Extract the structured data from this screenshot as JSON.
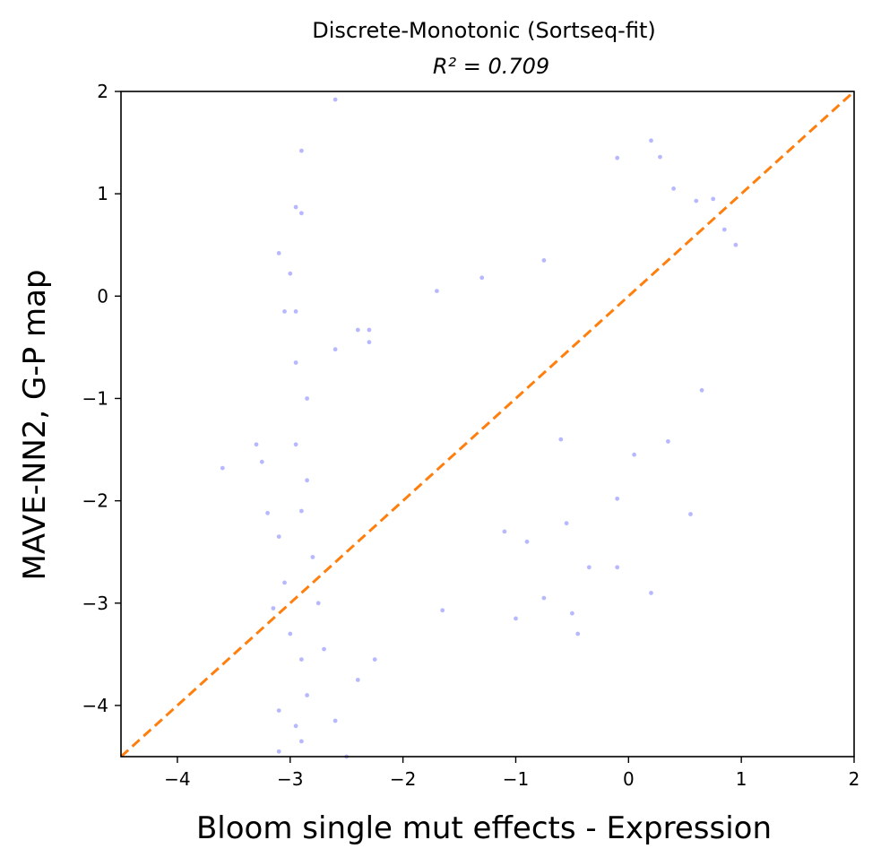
{
  "chart_data": {
    "type": "scatter",
    "title": "Discrete-Monotonic (Sortseq-fit)",
    "subtitle": "R² = 0.709",
    "xlabel": "Bloom single mut effects - Expression",
    "ylabel": "MAVE-NN2, G-P map",
    "xlim": [
      -4.5,
      2
    ],
    "ylim": [
      -4.5,
      2
    ],
    "xticks": [
      -4,
      -3,
      -2,
      -1,
      0,
      1,
      2
    ],
    "yticks": [
      -4,
      -3,
      -2,
      -1,
      0,
      1,
      2
    ],
    "xtick_labels": [
      "−4",
      "−3",
      "−2",
      "−1",
      "0",
      "1",
      "2"
    ],
    "ytick_labels": [
      "−4",
      "−3",
      "−2",
      "−1",
      "0",
      "1",
      "2"
    ],
    "grid": false,
    "point_color": "#0000ff",
    "point_opacity": 0.28,
    "diagonal": {
      "from": [
        -4.5,
        -4.5
      ],
      "to": [
        2,
        2
      ],
      "color": "#ff7f0e",
      "style": "dashed"
    },
    "points": [
      [
        -2.6,
        1.92
      ],
      [
        -2.9,
        1.42
      ],
      [
        -2.95,
        0.87
      ],
      [
        -2.9,
        0.81
      ],
      [
        -3.1,
        0.42
      ],
      [
        -3.0,
        0.22
      ],
      [
        -3.05,
        -0.15
      ],
      [
        -2.95,
        -0.15
      ],
      [
        -1.7,
        0.05
      ],
      [
        -1.3,
        0.18
      ],
      [
        -0.75,
        0.35
      ],
      [
        0.2,
        1.52
      ],
      [
        0.28,
        1.36
      ],
      [
        -0.1,
        1.35
      ],
      [
        0.4,
        1.05
      ],
      [
        0.6,
        0.93
      ],
      [
        0.75,
        0.95
      ],
      [
        -2.4,
        -0.33
      ],
      [
        -2.3,
        -0.33
      ],
      [
        -2.6,
        -0.52
      ],
      [
        -3.6,
        -1.68
      ],
      [
        -3.25,
        -1.62
      ],
      [
        -3.3,
        -1.45
      ],
      [
        -3.2,
        -2.12
      ],
      [
        -3.1,
        -2.35
      ],
      [
        -3.15,
        -3.05
      ],
      [
        -3.05,
        -2.8
      ],
      [
        -3.1,
        -4.45
      ],
      [
        -3.1,
        -4.05
      ],
      [
        -2.7,
        -3.45
      ],
      [
        -2.6,
        -4.15
      ],
      [
        -2.5,
        -4.5
      ],
      [
        -2.4,
        -3.75
      ],
      [
        -2.25,
        -3.55
      ],
      [
        -0.75,
        -2.95
      ],
      [
        -0.5,
        -3.1
      ],
      [
        -0.1,
        -2.65
      ],
      [
        -0.35,
        -2.65
      ],
      [
        -0.45,
        -3.3
      ],
      [
        -1.0,
        -3.15
      ],
      [
        0.2,
        -2.9
      ],
      [
        0.55,
        -2.13
      ],
      [
        0.65,
        -0.92
      ],
      [
        -1.65,
        -3.07
      ],
      [
        -1.1,
        -2.3
      ],
      [
        -0.55,
        -2.22
      ],
      [
        -0.1,
        -1.98
      ],
      [
        0.35,
        -1.42
      ],
      [
        0.05,
        -1.55
      ],
      [
        -0.6,
        -1.4
      ],
      [
        -0.9,
        -2.4
      ],
      [
        0.95,
        0.5
      ],
      [
        0.85,
        0.65
      ],
      [
        -2.95,
        -1.45
      ],
      [
        -2.85,
        -1.0
      ],
      [
        -2.95,
        -0.65
      ],
      [
        -2.3,
        -0.45
      ],
      [
        -2.9,
        -3.55
      ],
      [
        -2.85,
        -3.9
      ],
      [
        -2.95,
        -4.2
      ],
      [
        -2.9,
        -4.35
      ],
      [
        -3.0,
        -3.3
      ],
      [
        -2.75,
        -3.0
      ],
      [
        -2.8,
        -2.55
      ],
      [
        -2.9,
        -2.1
      ],
      [
        -2.85,
        -1.8
      ]
    ]
  }
}
